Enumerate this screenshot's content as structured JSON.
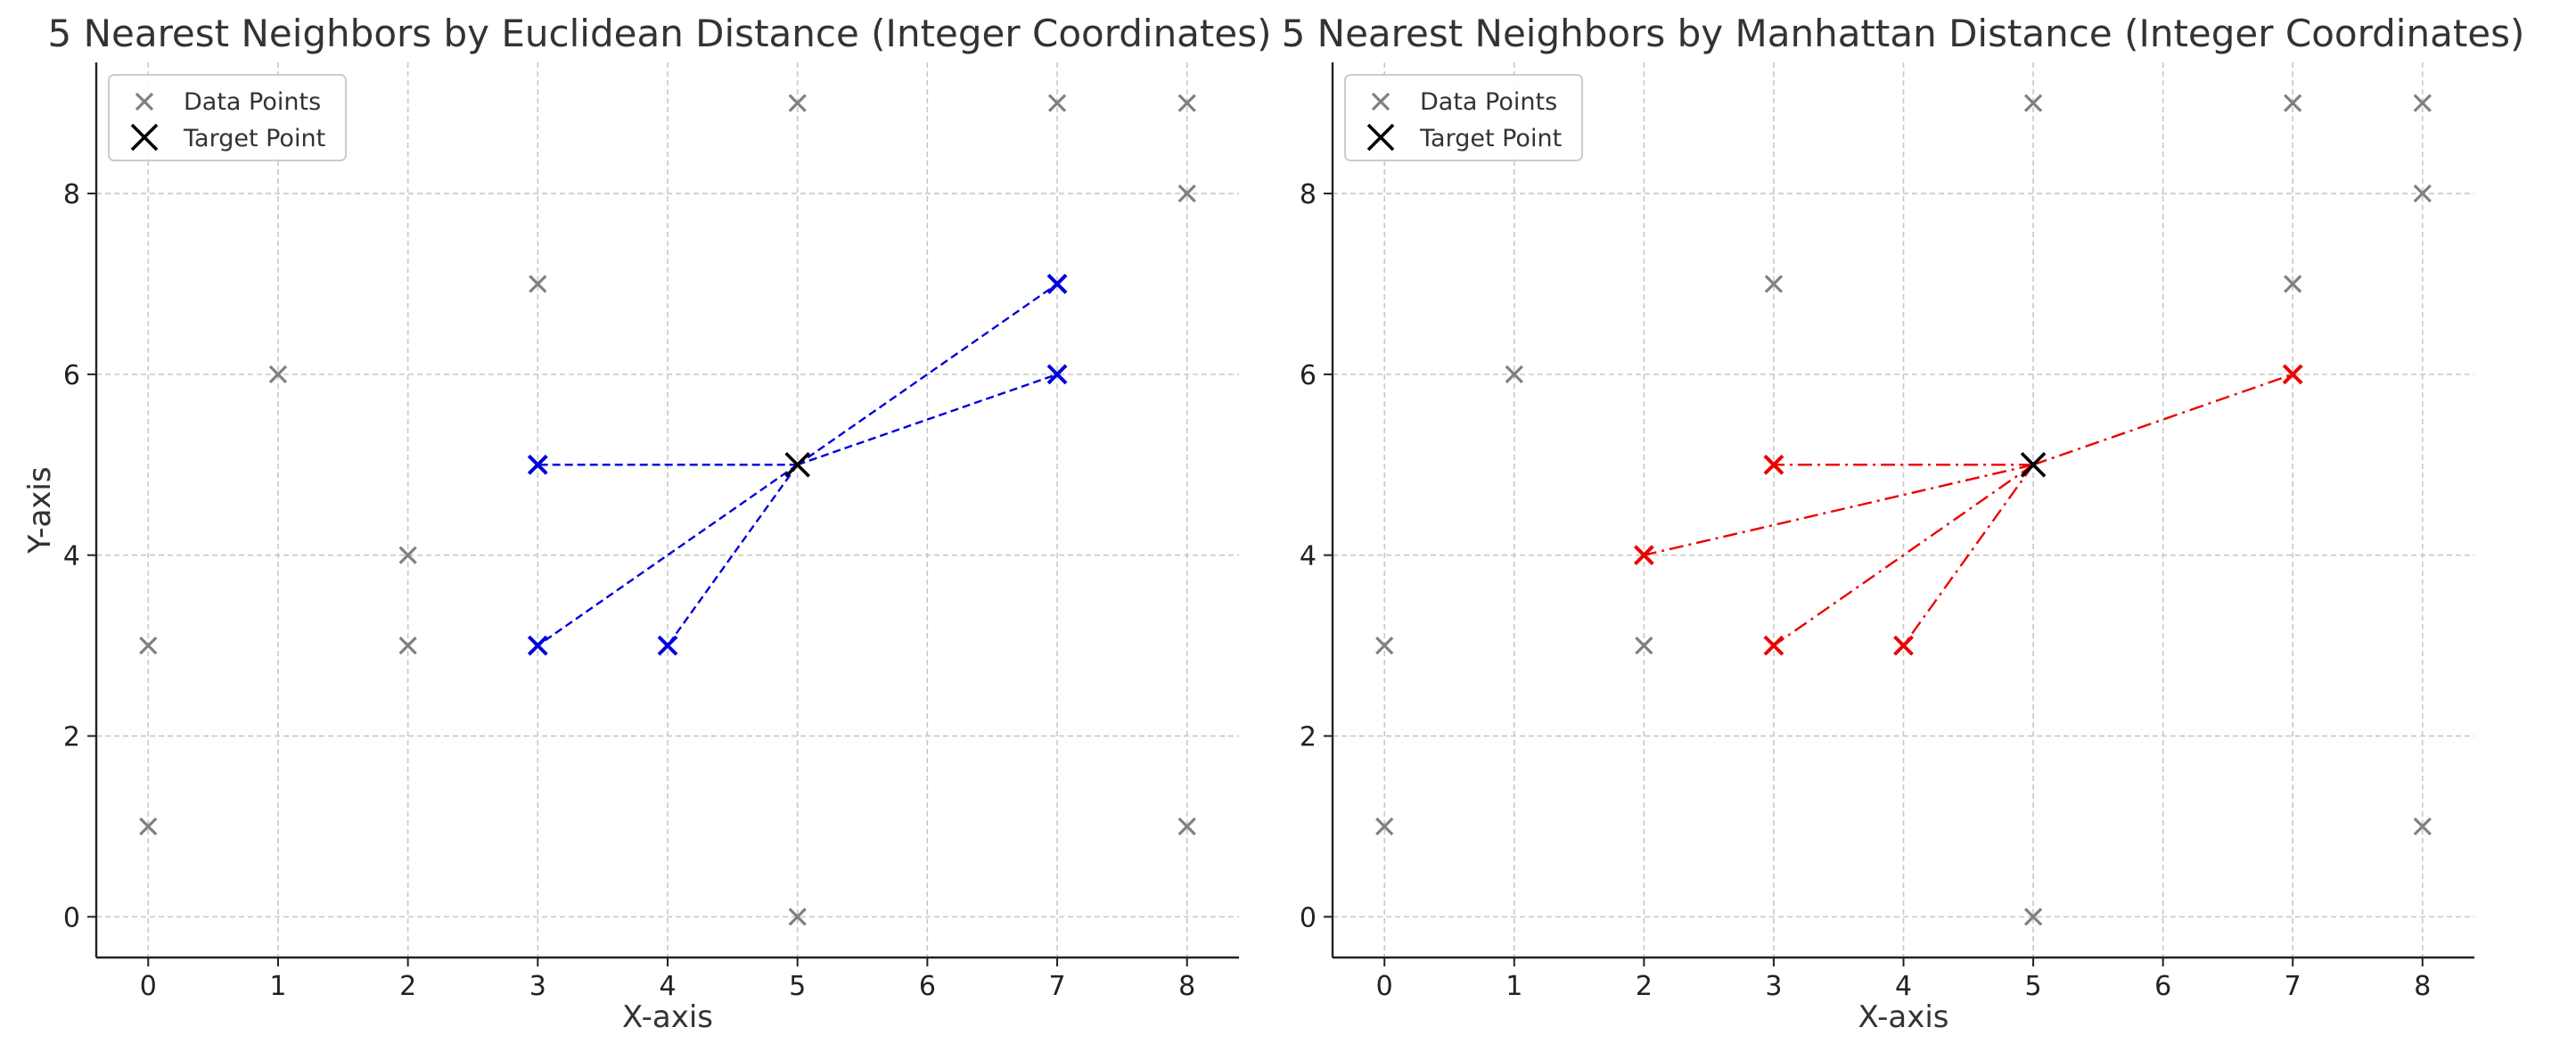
{
  "chart_data": [
    {
      "type": "scatter",
      "title": "5 Nearest Neighbors by Euclidean Distance (Integer Coordinates)",
      "xlabel": "X-axis",
      "ylabel": "Y-axis",
      "xlim": [
        -0.4,
        8.4
      ],
      "ylim": [
        -0.45,
        9.45
      ],
      "xticks": [
        0,
        1,
        2,
        3,
        4,
        5,
        6,
        7,
        8
      ],
      "yticks": [
        0,
        2,
        4,
        6,
        8
      ],
      "grid": true,
      "legend_position": "top-left",
      "legend": [
        "Data Points",
        "Target Point"
      ],
      "data_points": [
        [
          0,
          1
        ],
        [
          0,
          3
        ],
        [
          1,
          6
        ],
        [
          2,
          3
        ],
        [
          2,
          4
        ],
        [
          3,
          5
        ],
        [
          3,
          3
        ],
        [
          3,
          7
        ],
        [
          4,
          3
        ],
        [
          5,
          0
        ],
        [
          5,
          9
        ],
        [
          7,
          6
        ],
        [
          7,
          7
        ],
        [
          7,
          9
        ],
        [
          8,
          1
        ],
        [
          8,
          8
        ],
        [
          8,
          9
        ]
      ],
      "target": [
        5,
        5
      ],
      "neighbors": [
        [
          3,
          5
        ],
        [
          4,
          3
        ],
        [
          3,
          3
        ],
        [
          7,
          6
        ],
        [
          7,
          7
        ]
      ],
      "neighbor_color": "#0000dd",
      "line_style": "dashed",
      "data_color": "#808080",
      "target_color": "#000000"
    },
    {
      "type": "scatter",
      "title": "5 Nearest Neighbors by Manhattan Distance (Integer Coordinates)",
      "xlabel": "X-axis",
      "ylabel": "Y-axis",
      "xlim": [
        -0.4,
        8.4
      ],
      "ylim": [
        -0.45,
        9.45
      ],
      "xticks": [
        0,
        1,
        2,
        3,
        4,
        5,
        6,
        7,
        8
      ],
      "yticks": [
        0,
        2,
        4,
        6,
        8
      ],
      "grid": true,
      "legend_position": "top-left",
      "legend": [
        "Data Points",
        "Target Point"
      ],
      "data_points": [
        [
          0,
          1
        ],
        [
          0,
          3
        ],
        [
          1,
          6
        ],
        [
          2,
          3
        ],
        [
          2,
          4
        ],
        [
          3,
          5
        ],
        [
          3,
          3
        ],
        [
          3,
          7
        ],
        [
          4,
          3
        ],
        [
          5,
          0
        ],
        [
          5,
          9
        ],
        [
          7,
          6
        ],
        [
          7,
          7
        ],
        [
          7,
          9
        ],
        [
          8,
          1
        ],
        [
          8,
          8
        ],
        [
          8,
          9
        ]
      ],
      "target": [
        5,
        5
      ],
      "neighbors": [
        [
          3,
          5
        ],
        [
          4,
          3
        ],
        [
          3,
          3
        ],
        [
          2,
          4
        ],
        [
          7,
          6
        ]
      ],
      "neighbor_color": "#ee0000",
      "line_style": "dashdot",
      "data_color": "#808080",
      "target_color": "#000000"
    }
  ]
}
